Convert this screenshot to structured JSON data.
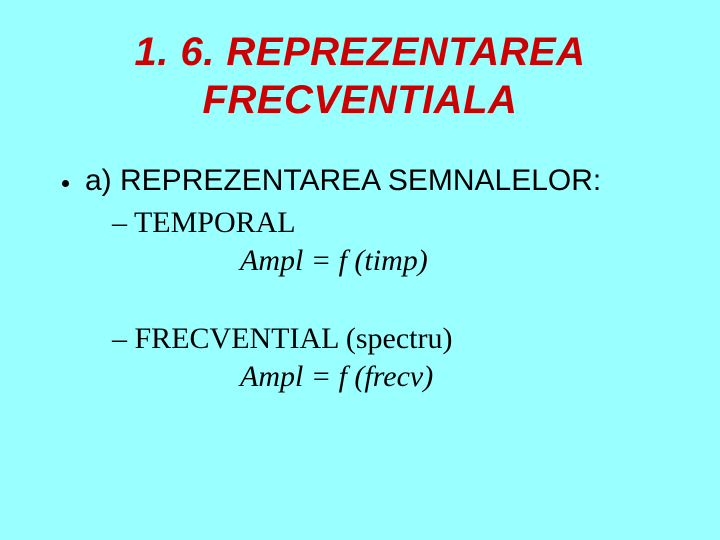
{
  "slide": {
    "title_line1": "1. 6. REPREZENTAREA",
    "title_line2": "FRECVENTIALA",
    "title_color": "#cc0000",
    "background_color": "#99ffff",
    "title_fontsize": 40,
    "body_fontsize": 30,
    "bullet": {
      "text": "a) REPREZENTAREA SEMNALELOR:"
    },
    "section1": {
      "label": "– TEMPORAL",
      "formula": "Ampl = f (timp)"
    },
    "section2": {
      "label": "– FRECVENTIAL (spectru)",
      "formula": "Ampl = f (frecv)"
    }
  }
}
